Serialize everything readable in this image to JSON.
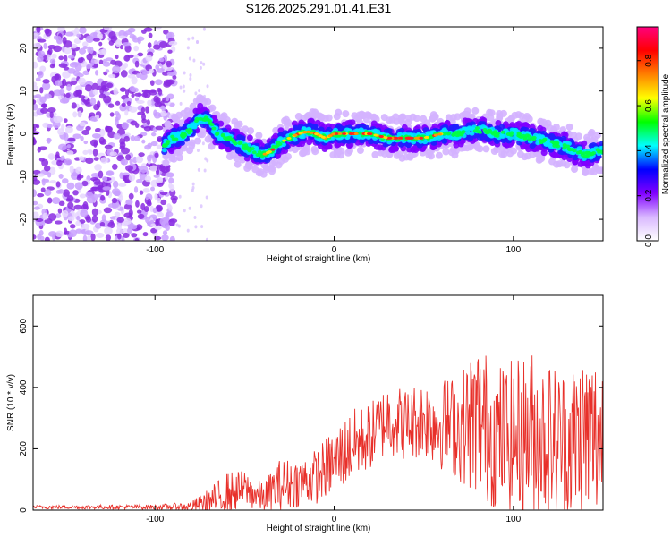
{
  "title": "S126.2025.291.01.41.E31",
  "chart_data": [
    {
      "type": "heatmap",
      "name": "spectrogram",
      "xlabel": "Height of straight line (km)",
      "ylabel": "Frequency (Hz)",
      "xlim": [
        -168,
        150
      ],
      "ylim": [
        -25,
        25
      ],
      "xticks": [
        -100,
        0,
        100
      ],
      "yticks": [
        -20,
        -10,
        0,
        10,
        20
      ],
      "colorbar": {
        "label": "Normalized spectral amplitude",
        "range": [
          0,
          0.95
        ],
        "ticks": [
          0.0,
          0.2,
          0.4,
          0.6,
          0.8
        ],
        "colormap": [
          "#ffffff",
          "#d9b8ff",
          "#8000ff",
          "#0000ff",
          "#00ffff",
          "#00ff00",
          "#ffff00",
          "#ff8000",
          "#ff0000",
          "#ff007f"
        ]
      },
      "ridge": {
        "x": [
          -95,
          -90,
          -85,
          -80,
          -75,
          -70,
          -65,
          -60,
          -55,
          -50,
          -45,
          -40,
          -35,
          -30,
          -25,
          -20,
          -15,
          -10,
          -5,
          0,
          10,
          20,
          30,
          40,
          50,
          60,
          70,
          80,
          90,
          100,
          110,
          120,
          130,
          140,
          148
        ],
        "freq": [
          -3,
          -1,
          -0.5,
          1,
          4,
          3,
          0,
          -1,
          -2,
          -3,
          -4,
          -5,
          -4,
          -2,
          -1,
          0,
          0.5,
          0,
          -1,
          0,
          0,
          0,
          -1,
          -1,
          -1,
          0,
          0,
          1,
          0,
          0,
          -1,
          -2,
          -3,
          -5,
          -4
        ]
      },
      "noise_region_x": [
        -168,
        -95
      ]
    },
    {
      "type": "line",
      "name": "snr",
      "xlabel": "Height of straight line (km)",
      "ylabel": "SNR (10 * v/v)",
      "xlim": [
        -168,
        150
      ],
      "ylim": [
        0,
        700
      ],
      "xticks": [
        -100,
        0,
        100
      ],
      "yticks": [
        0,
        200,
        400,
        600
      ],
      "color": "#e8302a",
      "envelope": {
        "x": [
          -168,
          -100,
          -80,
          -70,
          -60,
          -50,
          -40,
          -30,
          -20,
          -10,
          0,
          10,
          20,
          30,
          40,
          50,
          60,
          70,
          80,
          90,
          100,
          110,
          120,
          130,
          140,
          150
        ],
        "base": [
          10,
          10,
          12,
          25,
          55,
          70,
          40,
          80,
          90,
          110,
          160,
          210,
          240,
          300,
          280,
          300,
          280,
          270,
          300,
          240,
          240,
          250,
          230,
          220,
          240,
          230
        ],
        "amp": [
          6,
          8,
          15,
          45,
          70,
          60,
          50,
          90,
          80,
          90,
          110,
          120,
          110,
          120,
          120,
          130,
          150,
          180,
          260,
          240,
          250,
          280,
          260,
          250,
          300,
          280
        ]
      }
    }
  ]
}
